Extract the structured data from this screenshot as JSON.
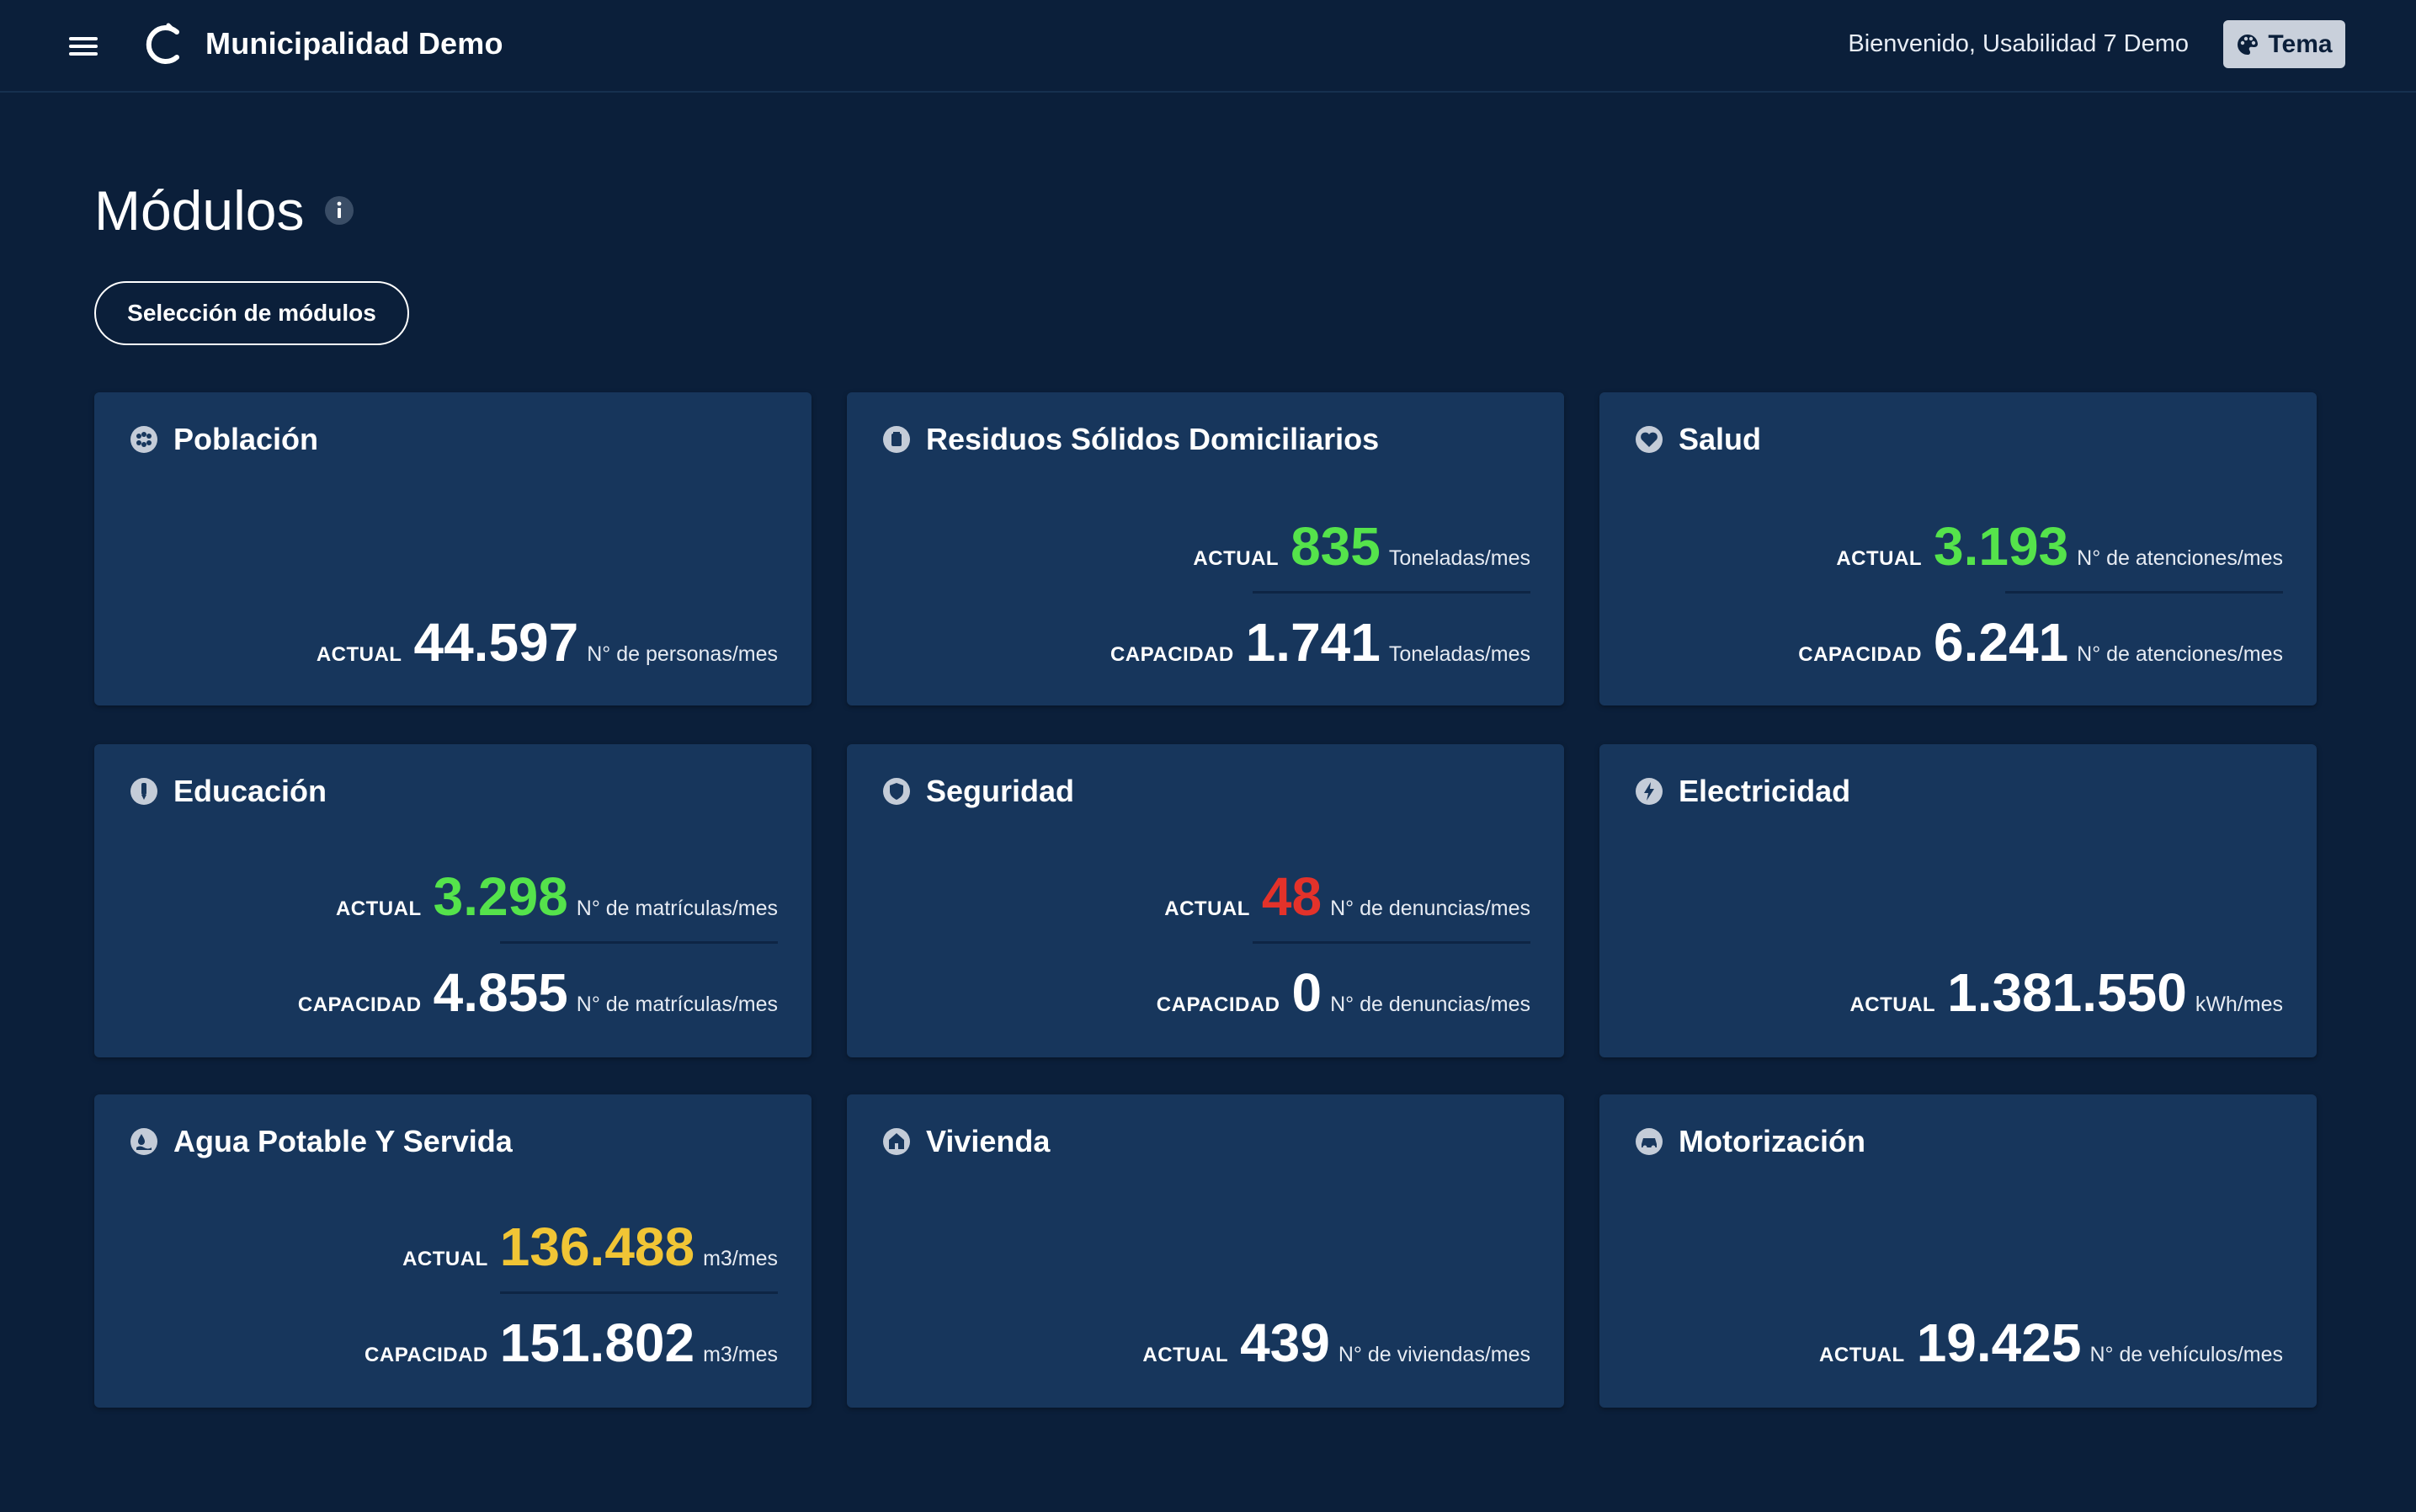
{
  "header": {
    "app_title": "Municipalidad Demo",
    "welcome": "Bienvenido, Usabilidad 7 Demo",
    "theme_label": "Tema",
    "icons": {
      "menu": "hamburger-icon",
      "logo": "logo-c-icon",
      "theme": "palette-icon"
    }
  },
  "page": {
    "title": "Módulos",
    "select_button": "Selección de módulos"
  },
  "colors": {
    "background": "#0b1f3a",
    "card": "#17365c",
    "good": "#55e34b",
    "bad": "#e3322a",
    "warning": "#f1c535"
  },
  "cards": [
    {
      "title": "Población",
      "icon": "population-icon",
      "actual_label": "ACTUAL",
      "actual_value": "44.597",
      "actual_unit": "N° de personas/mes"
    },
    {
      "title": "Residuos Sólidos Domiciliarios",
      "icon": "trash-icon",
      "actual_label": "ACTUAL",
      "actual_value": "835",
      "actual_unit": "Toneladas/mes",
      "capacity_label": "CAPACIDAD",
      "capacity_value": "1.741",
      "capacity_unit": "Toneladas/mes"
    },
    {
      "title": "Salud",
      "icon": "heart-icon",
      "actual_label": "ACTUAL",
      "actual_value": "3.193",
      "actual_unit": "N° de atenciones/mes",
      "capacity_label": "CAPACIDAD",
      "capacity_value": "6.241",
      "capacity_unit": "N° de atenciones/mes"
    },
    {
      "title": "Educación",
      "icon": "education-icon",
      "actual_label": "ACTUAL",
      "actual_value": "3.298",
      "actual_unit": "N° de matrículas/mes",
      "capacity_label": "CAPACIDAD",
      "capacity_value": "4.855",
      "capacity_unit": "N° de matrículas/mes"
    },
    {
      "title": "Seguridad",
      "icon": "shield-icon",
      "actual_label": "ACTUAL",
      "actual_value": "48",
      "actual_unit": "N° de denuncias/mes",
      "capacity_label": "CAPACIDAD",
      "capacity_value": "0",
      "capacity_unit": "N° de denuncias/mes"
    },
    {
      "title": "Electricidad",
      "icon": "lightning-icon",
      "actual_label": "ACTUAL",
      "actual_value": "1.381.550",
      "actual_unit": "kWh/mes"
    },
    {
      "title": "Agua Potable Y Servida",
      "icon": "water-icon",
      "actual_label": "ACTUAL",
      "actual_value": "136.488",
      "actual_unit": "m3/mes",
      "capacity_label": "CAPACIDAD",
      "capacity_value": "151.802",
      "capacity_unit": "m3/mes"
    },
    {
      "title": "Vivienda",
      "icon": "house-icon",
      "actual_label": "ACTUAL",
      "actual_value": "439",
      "actual_unit": "N° de viviendas/mes"
    },
    {
      "title": "Motorización",
      "icon": "car-icon",
      "actual_label": "ACTUAL",
      "actual_value": "19.425",
      "actual_unit": "N° de vehículos/mes"
    }
  ]
}
